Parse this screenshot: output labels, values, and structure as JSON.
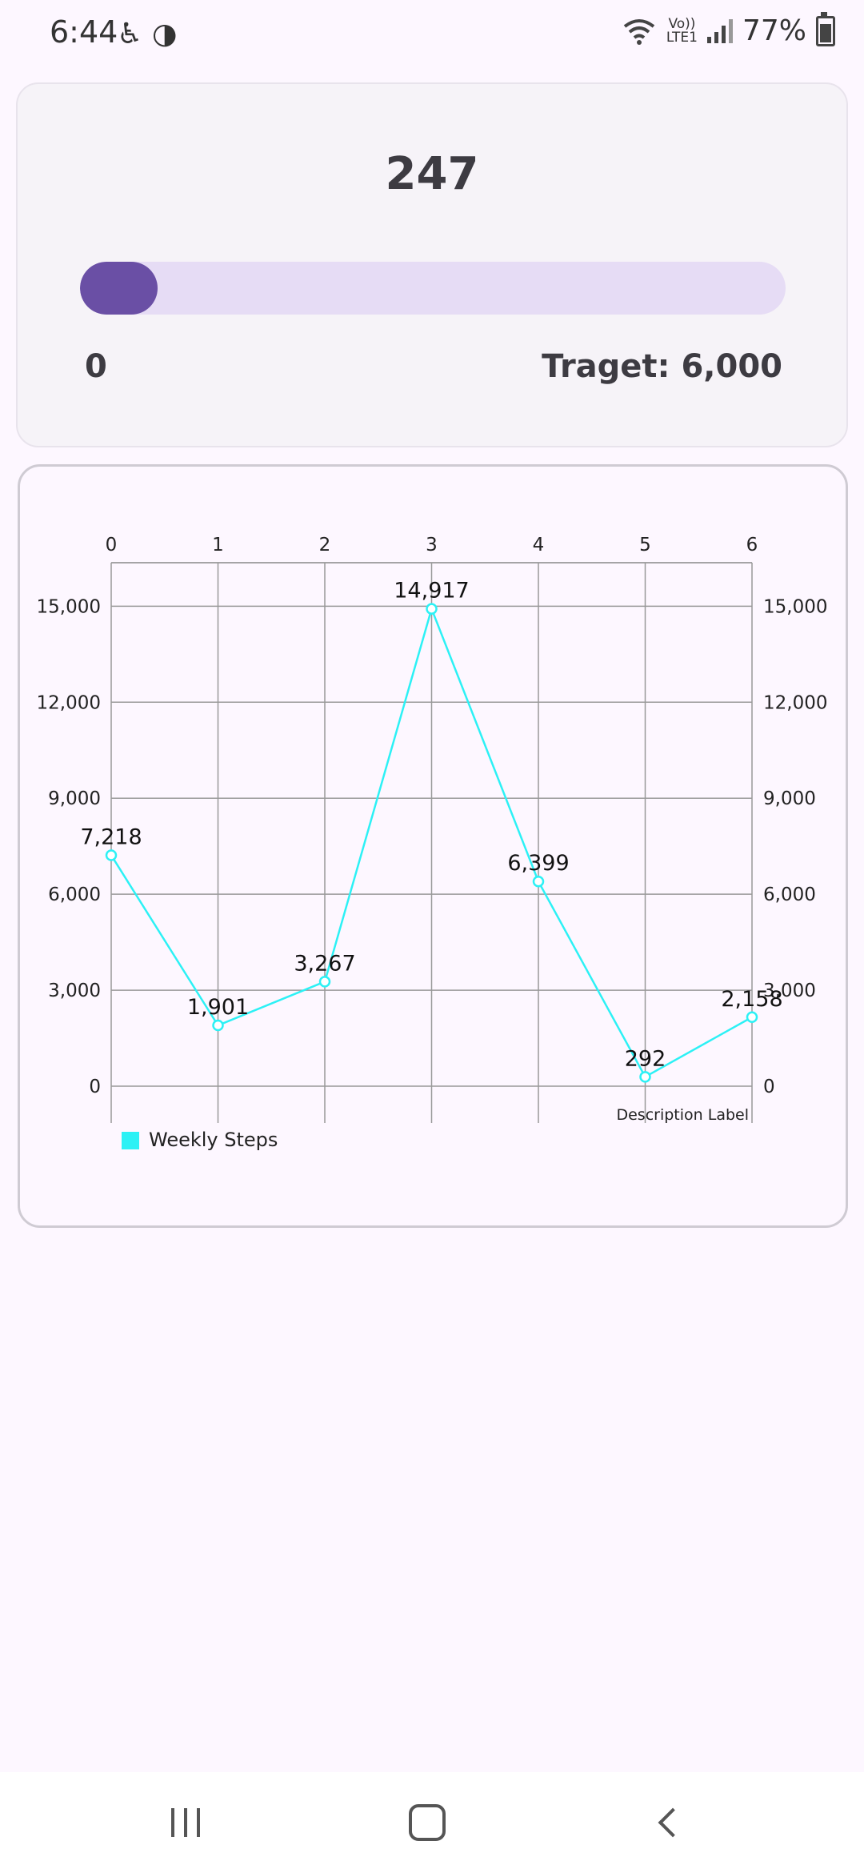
{
  "status_bar": {
    "time": "6:44",
    "network_label_top": "Vo))",
    "network_label_bottom": "LTE1",
    "battery": "77%"
  },
  "summary": {
    "steps": "247",
    "progress_fraction": 0.04,
    "min_label": "0",
    "target_label": "Traget: 6,000"
  },
  "chart_data": {
    "type": "line",
    "x": [
      0,
      1,
      2,
      3,
      4,
      5,
      6
    ],
    "x_tick_labels": [
      "0",
      "1",
      "2",
      "3",
      "4",
      "5",
      "6"
    ],
    "y_tick_values": [
      0,
      3000,
      6000,
      9000,
      12000,
      15000
    ],
    "y_tick_labels": [
      "0",
      "3,000",
      "6,000",
      "9,000",
      "12,000",
      "15,000"
    ],
    "ylim": [
      -1150,
      16360
    ],
    "xlim": [
      0,
      6
    ],
    "series": [
      {
        "name": "Weekly Steps",
        "values": [
          7218,
          1901,
          3267,
          14917,
          6399,
          292,
          2158
        ],
        "value_labels": [
          "7,218",
          "1,901",
          "3,267",
          "14,917",
          "6,399",
          "292",
          "2,158"
        ],
        "color": "#2cf1f5"
      }
    ],
    "description": "Description Label",
    "legend": "bottom-left",
    "grid": true,
    "x_axis_position": "top",
    "y_axes": "left-and-right"
  },
  "colors": {
    "progress_fill": "#6a4fa5",
    "progress_track": "#e6dcf5",
    "line": "#2cf1f5"
  },
  "icons": {
    "status_left": [
      "accessibility-icon",
      "data-saver-icon"
    ],
    "status_right": [
      "wifi-icon",
      "signal-icon",
      "battery-icon"
    ],
    "nav": [
      "recent-apps-icon",
      "home-icon",
      "back-icon"
    ]
  }
}
